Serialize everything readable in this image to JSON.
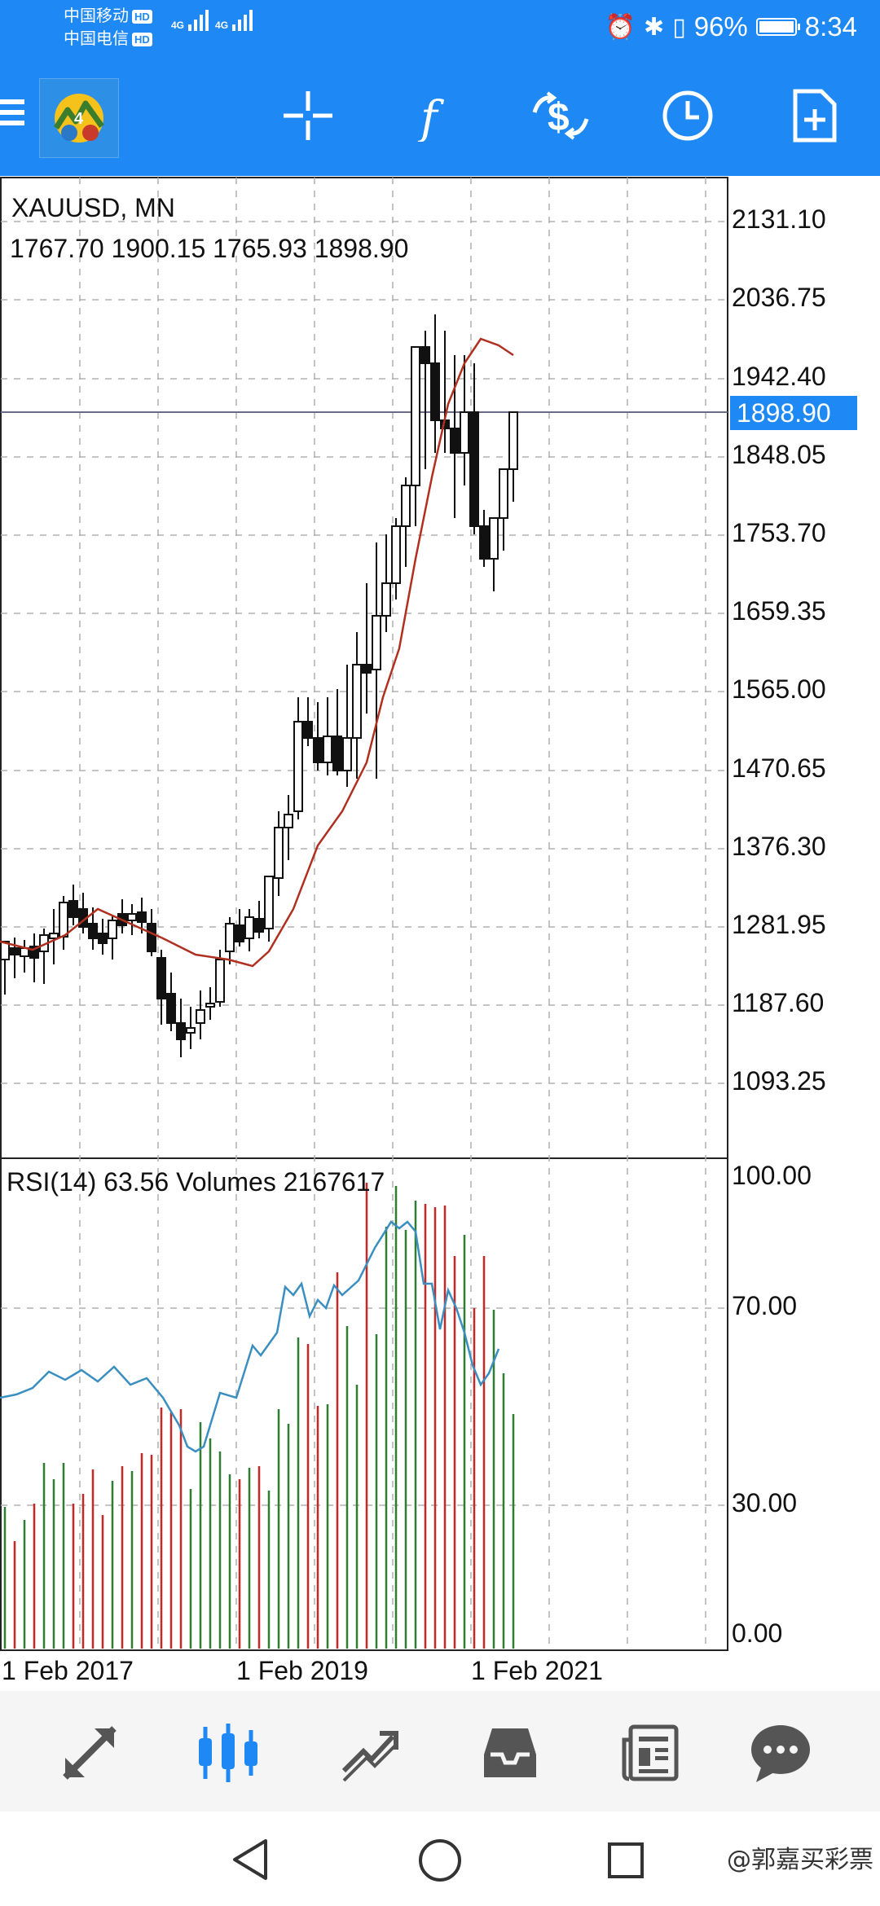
{
  "status_bar": {
    "carrier_1": "中国移动",
    "carrier_2": "中国电信",
    "hd_badge": "HD",
    "network_type": "4G",
    "battery_percent": "96%",
    "time": "8:34",
    "icons": [
      "alarm-icon",
      "bluetooth-icon",
      "vibrate-icon",
      "battery-icon"
    ]
  },
  "toolbar": {
    "icons": [
      "menu-icon",
      "mt4-logo",
      "crosshair-icon",
      "indicators-icon",
      "symbol-change-icon",
      "timeframe-icon",
      "new-order-icon"
    ]
  },
  "chart": {
    "symbol_title": "XAUUSD, MN",
    "ohlc": "1767.70 1900.15 1765.93 1898.90",
    "price_ticks": [
      "2131.10",
      "2036.75",
      "1942.40",
      "1848.05",
      "1753.70",
      "1659.35",
      "1565.00",
      "1470.65",
      "1376.30",
      "1281.95",
      "1187.60",
      "1093.25"
    ],
    "current_price": "1898.90",
    "indicator_title": "RSI(14) 63.56 Volumes 2167617",
    "rsi_ticks": [
      "100.00",
      "70.00",
      "30.00",
      "0.00"
    ],
    "date_labels": [
      "1 Feb 2017",
      "1 Feb 2019",
      "1 Feb 2021"
    ],
    "colors": {
      "price_line": "#6a6a8a",
      "price_tag": "#1e88f5",
      "moving_average": "#b03020",
      "rsi_line": "#3a8fc0",
      "volume_up": "#2e7d32",
      "volume_down": "#c62828"
    }
  },
  "bottom_nav": {
    "items": [
      "quotes-icon",
      "chart-icon",
      "trade-icon",
      "history-icon",
      "news-icon",
      "chat-icon"
    ],
    "active": "chart-icon"
  },
  "system_nav": {
    "items": [
      "back-icon",
      "home-icon",
      "recents-icon"
    ]
  },
  "watermark": "@郭嘉买彩票"
}
